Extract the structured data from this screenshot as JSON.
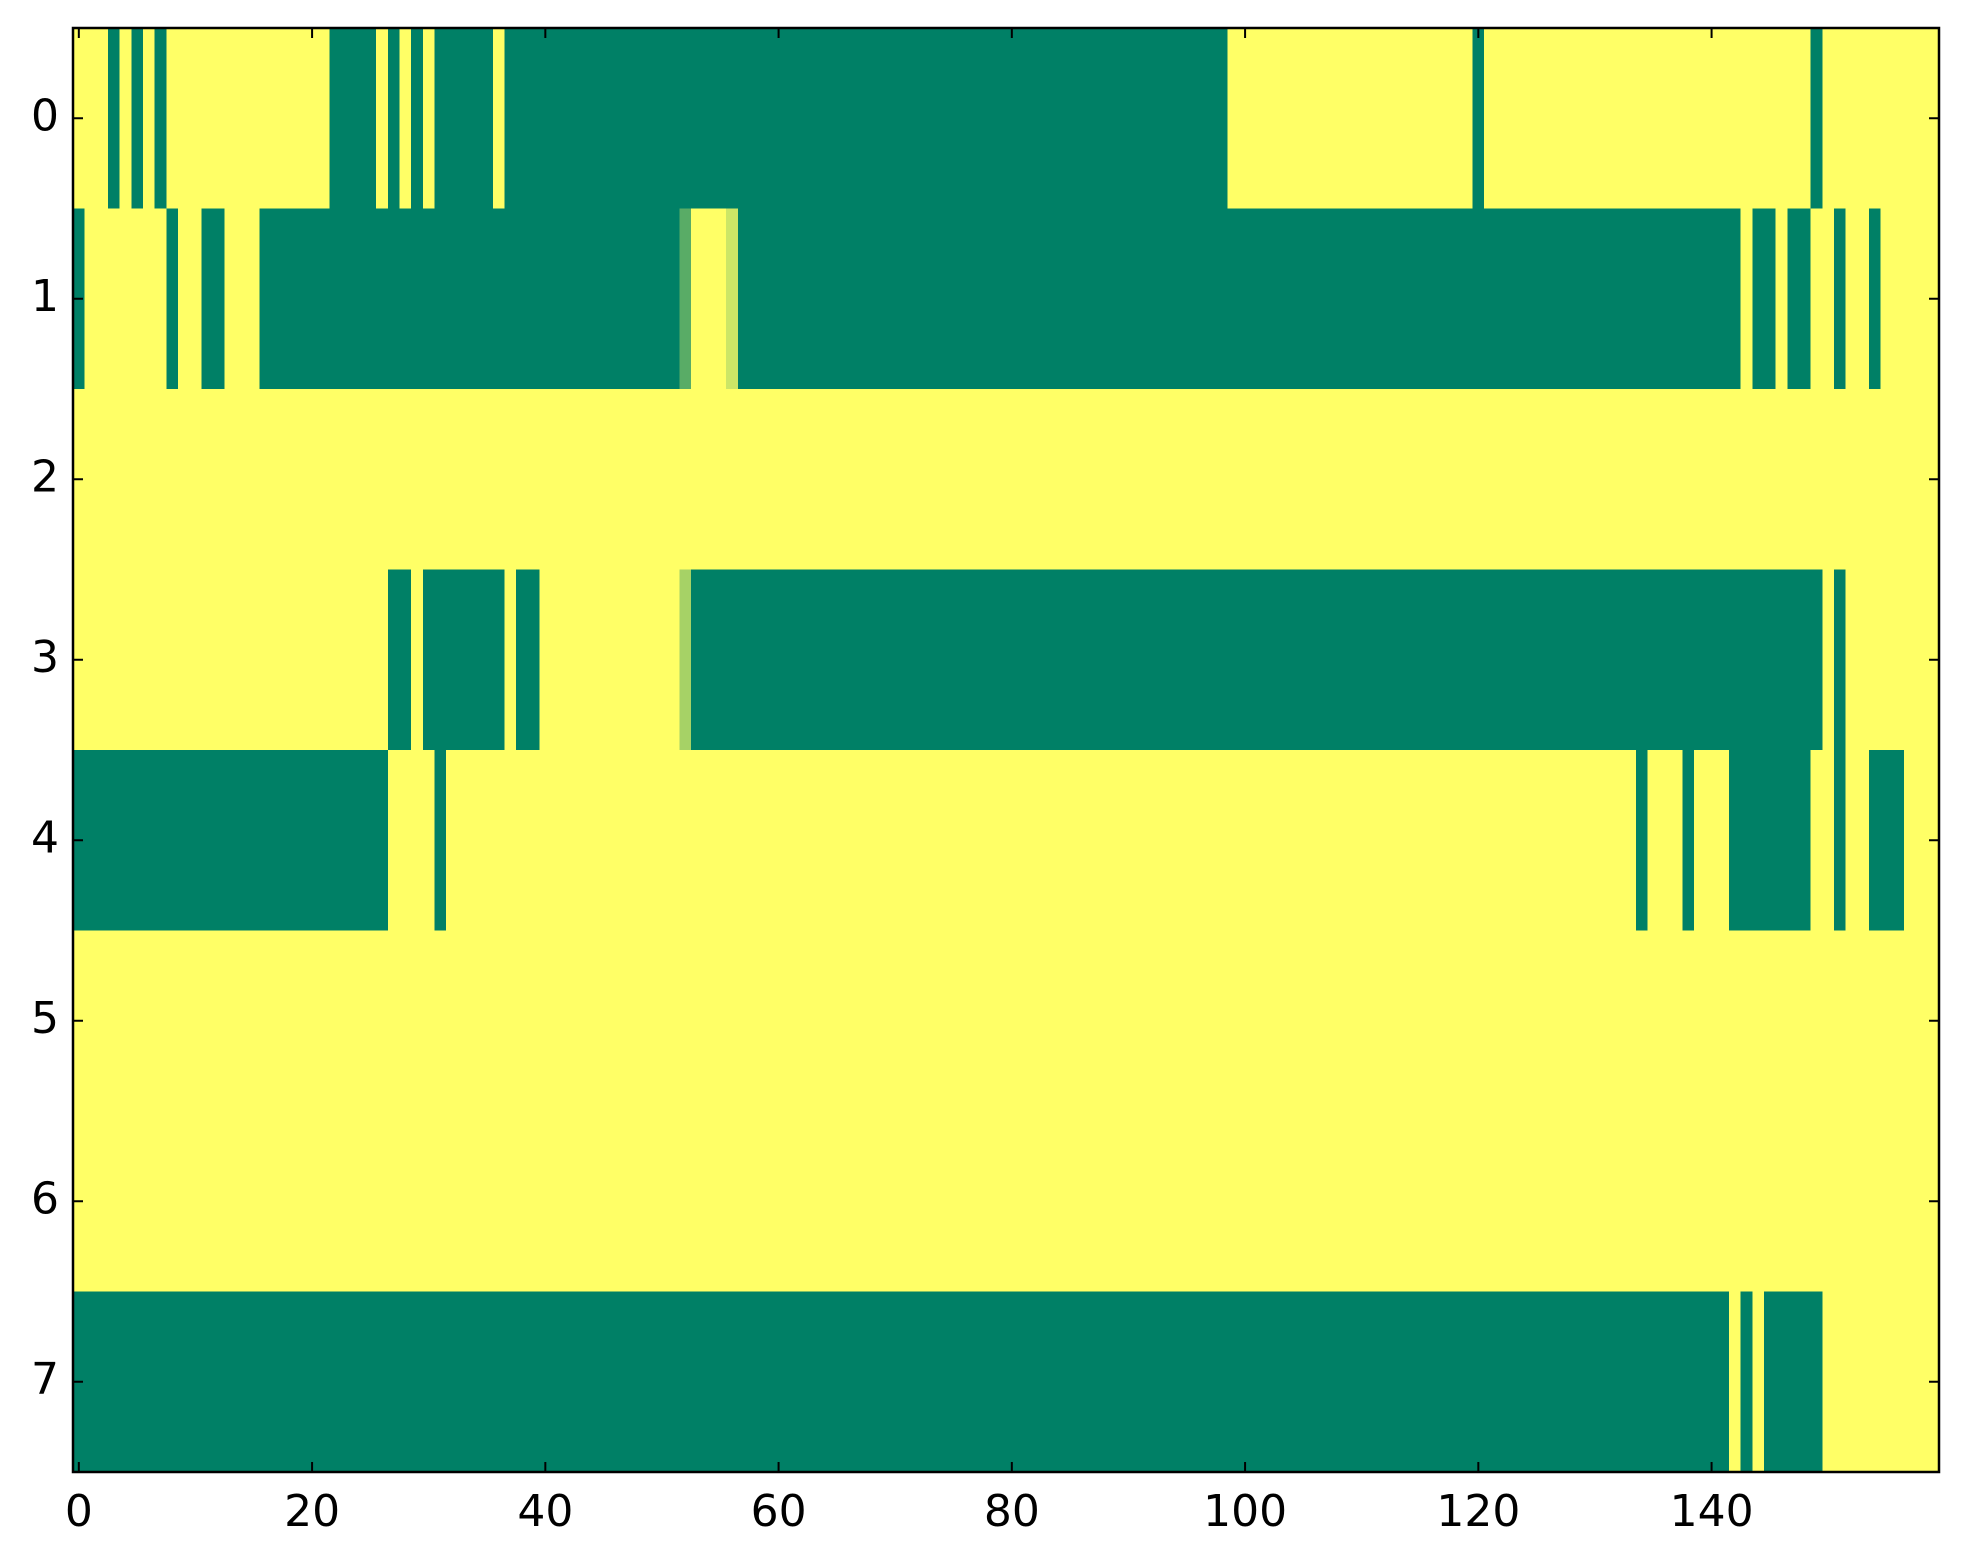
{
  "chart_data": {
    "type": "heatmap",
    "colormap": "summer",
    "clim": [
      0,
      1
    ],
    "xlim": [
      -0.5,
      159.5
    ],
    "ylim": [
      7.5,
      -0.5
    ],
    "xticks": [
      0,
      20,
      40,
      60,
      80,
      100,
      120,
      140
    ],
    "yticks": [
      0,
      1,
      2,
      3,
      4,
      5,
      6,
      7
    ],
    "z": [
      [
        1,
        1,
        1,
        0,
        1,
        0,
        1,
        0,
        1,
        1,
        1,
        1,
        1,
        1,
        1,
        1,
        1,
        1,
        1,
        1,
        1,
        1,
        0,
        0,
        0,
        0,
        1,
        0,
        1,
        0,
        1,
        0,
        0,
        0,
        0,
        0,
        1,
        0,
        0,
        0,
        0,
        0,
        0,
        0,
        0,
        0,
        0,
        0,
        0,
        0,
        0,
        0,
        0,
        0,
        0,
        0,
        0,
        0,
        0,
        0,
        0,
        0,
        0,
        0,
        0,
        0,
        0,
        0,
        0,
        0,
        0,
        0,
        0,
        0,
        0,
        0,
        0,
        0,
        0,
        0,
        0,
        0,
        0,
        0,
        0,
        0,
        0,
        0,
        0,
        0,
        0,
        0,
        0,
        0,
        0,
        0,
        0,
        0,
        0,
        1,
        1,
        1,
        1,
        1,
        1,
        1,
        1,
        1,
        1,
        1,
        1,
        1,
        1,
        1,
        1,
        1,
        1,
        1,
        1,
        1,
        0,
        1,
        1,
        1,
        1,
        1,
        1,
        1,
        1,
        1,
        1,
        1,
        1,
        1,
        1,
        1,
        1,
        1,
        1,
        1,
        1,
        1,
        1,
        1,
        1,
        1,
        1,
        1,
        1,
        0,
        1,
        1,
        1,
        1,
        1,
        1,
        1,
        1,
        1,
        1
      ],
      [
        0,
        1,
        1,
        1,
        1,
        1,
        1,
        1,
        0,
        1,
        1,
        0,
        0,
        1,
        1,
        1,
        0,
        0,
        0,
        0,
        0,
        0,
        0,
        0,
        0,
        0,
        0,
        0,
        0,
        0,
        0,
        0,
        0,
        0,
        0,
        0,
        0,
        0,
        0,
        0,
        0,
        0,
        0,
        0,
        0,
        0,
        0,
        0,
        0,
        0,
        0,
        0,
        0.35,
        1,
        1,
        1,
        0.8,
        0,
        0,
        0,
        0,
        0,
        0,
        0,
        0,
        0,
        0,
        0,
        0,
        0,
        0,
        0,
        0,
        0,
        0,
        0,
        0,
        0,
        0,
        0,
        0,
        0,
        0,
        0,
        0,
        0,
        0,
        0,
        0,
        0,
        0,
        0,
        0,
        0,
        0,
        0,
        0,
        0,
        0,
        0,
        0,
        0,
        0,
        0,
        0,
        0,
        0,
        0,
        0,
        0,
        0,
        0,
        0,
        0,
        0,
        0,
        0,
        0,
        0,
        0,
        0,
        0,
        0,
        0,
        0,
        0,
        0,
        0,
        0,
        0,
        0,
        0,
        0,
        0,
        0,
        0,
        0,
        0,
        0,
        0,
        0,
        0,
        0,
        1,
        0,
        0,
        1,
        0,
        0,
        1,
        1,
        0,
        1,
        1,
        0,
        1,
        1,
        1,
        1,
        1
      ],
      [
        1,
        1,
        1,
        1,
        1,
        1,
        1,
        1,
        1,
        1,
        1,
        1,
        1,
        1,
        1,
        1,
        1,
        1,
        1,
        1,
        1,
        1,
        1,
        1,
        1,
        1,
        1,
        1,
        1,
        1,
        1,
        1,
        1,
        1,
        1,
        1,
        1,
        1,
        1,
        1,
        1,
        1,
        1,
        1,
        1,
        1,
        1,
        1,
        1,
        1,
        1,
        1,
        1,
        1,
        1,
        1,
        1,
        1,
        1,
        1,
        1,
        1,
        1,
        1,
        1,
        1,
        1,
        1,
        1,
        1,
        1,
        1,
        1,
        1,
        1,
        1,
        1,
        1,
        1,
        1,
        1,
        1,
        1,
        1,
        1,
        1,
        1,
        1,
        1,
        1,
        1,
        1,
        1,
        1,
        1,
        1,
        1,
        1,
        1,
        1,
        1,
        1,
        1,
        1,
        1,
        1,
        1,
        1,
        1,
        1,
        1,
        1,
        1,
        1,
        1,
        1,
        1,
        1,
        1,
        1,
        1,
        1,
        1,
        1,
        1,
        1,
        1,
        1,
        1,
        1,
        1,
        1,
        1,
        1,
        1,
        1,
        1,
        1,
        1,
        1,
        1,
        1,
        1,
        1,
        1,
        1,
        1,
        1,
        1,
        1,
        1,
        1,
        1,
        1,
        1,
        1,
        1,
        1,
        1,
        1
      ],
      [
        1,
        1,
        1,
        1,
        1,
        1,
        1,
        1,
        1,
        1,
        1,
        1,
        1,
        1,
        1,
        1,
        1,
        1,
        1,
        1,
        1,
        1,
        1,
        1,
        1,
        1,
        1,
        0,
        0,
        1,
        0,
        0,
        0,
        0,
        0,
        0,
        0,
        1,
        0,
        0,
        1,
        1,
        1,
        1,
        1,
        1,
        1,
        1,
        1,
        1,
        1,
        1,
        0.65,
        0,
        0,
        0,
        0,
        0,
        0,
        0,
        0,
        0,
        0,
        0,
        0,
        0,
        0,
        0,
        0,
        0,
        0,
        0,
        0,
        0,
        0,
        0,
        0,
        0,
        0,
        0,
        0,
        0,
        0,
        0,
        0,
        0,
        0,
        0,
        0,
        0,
        0,
        0,
        0,
        0,
        0,
        0,
        0,
        0,
        0,
        0,
        0,
        0,
        0,
        0,
        0,
        0,
        0,
        0,
        0,
        0,
        0,
        0,
        0,
        0,
        0,
        0,
        0,
        0,
        0,
        0,
        0,
        0,
        0,
        0,
        0,
        0,
        0,
        0,
        0,
        0,
        0,
        0,
        0,
        0,
        0,
        0,
        0,
        0,
        0,
        0,
        0,
        0,
        0,
        0,
        0,
        0,
        0,
        0,
        0,
        0,
        1,
        0,
        1,
        1,
        1,
        1,
        1,
        1,
        1,
        1
      ],
      [
        0,
        0,
        0,
        0,
        0,
        0,
        0,
        0,
        0,
        0,
        0,
        0,
        0,
        0,
        0,
        0,
        0,
        0,
        0,
        0,
        0,
        0,
        0,
        0,
        0,
        0,
        0,
        1,
        1,
        1,
        1,
        0,
        1,
        1,
        1,
        1,
        1,
        1,
        1,
        1,
        1,
        1,
        1,
        1,
        1,
        1,
        1,
        1,
        1,
        1,
        1,
        1,
        1,
        1,
        1,
        1,
        1,
        1,
        1,
        1,
        1,
        1,
        1,
        1,
        1,
        1,
        1,
        1,
        1,
        1,
        1,
        1,
        1,
        1,
        1,
        1,
        1,
        1,
        1,
        1,
        1,
        1,
        1,
        1,
        1,
        1,
        1,
        1,
        1,
        1,
        1,
        1,
        1,
        1,
        1,
        1,
        1,
        1,
        1,
        1,
        1,
        1,
        1,
        1,
        1,
        1,
        1,
        1,
        1,
        1,
        1,
        1,
        1,
        1,
        1,
        1,
        1,
        1,
        1,
        1,
        1,
        1,
        1,
        1,
        1,
        1,
        1,
        1,
        1,
        1,
        1,
        1,
        1,
        1,
        0,
        1,
        1,
        1,
        0,
        1,
        1,
        1,
        0,
        0,
        0,
        0,
        0,
        0,
        0,
        1,
        1,
        0,
        1,
        1,
        0,
        0,
        0,
        1,
        1,
        1
      ],
      [
        1,
        1,
        1,
        1,
        1,
        1,
        1,
        1,
        1,
        1,
        1,
        1,
        1,
        1,
        1,
        1,
        1,
        1,
        1,
        1,
        1,
        1,
        1,
        1,
        1,
        1,
        1,
        1,
        1,
        1,
        1,
        1,
        1,
        1,
        1,
        1,
        1,
        1,
        1,
        1,
        1,
        1,
        1,
        1,
        1,
        1,
        1,
        1,
        1,
        1,
        1,
        1,
        1,
        1,
        1,
        1,
        1,
        1,
        1,
        1,
        1,
        1,
        1,
        1,
        1,
        1,
        1,
        1,
        1,
        1,
        1,
        1,
        1,
        1,
        1,
        1,
        1,
        1,
        1,
        1,
        1,
        1,
        1,
        1,
        1,
        1,
        1,
        1,
        1,
        1,
        1,
        1,
        1,
        1,
        1,
        1,
        1,
        1,
        1,
        1,
        1,
        1,
        1,
        1,
        1,
        1,
        1,
        1,
        1,
        1,
        1,
        1,
        1,
        1,
        1,
        1,
        1,
        1,
        1,
        1,
        1,
        1,
        1,
        1,
        1,
        1,
        1,
        1,
        1,
        1,
        1,
        1,
        1,
        1,
        1,
        1,
        1,
        1,
        1,
        1,
        1,
        1,
        1,
        1,
        1,
        1,
        1,
        1,
        1,
        1,
        1,
        1,
        1,
        1,
        1,
        1,
        1,
        1,
        1,
        1
      ],
      [
        1,
        1,
        1,
        1,
        1,
        1,
        1,
        1,
        1,
        1,
        1,
        1,
        1,
        1,
        1,
        1,
        1,
        1,
        1,
        1,
        1,
        1,
        1,
        1,
        1,
        1,
        1,
        1,
        1,
        1,
        1,
        1,
        1,
        1,
        1,
        1,
        1,
        1,
        1,
        1,
        1,
        1,
        1,
        1,
        1,
        1,
        1,
        1,
        1,
        1,
        1,
        1,
        1,
        1,
        1,
        1,
        1,
        1,
        1,
        1,
        1,
        1,
        1,
        1,
        1,
        1,
        1,
        1,
        1,
        1,
        1,
        1,
        1,
        1,
        1,
        1,
        1,
        1,
        1,
        1,
        1,
        1,
        1,
        1,
        1,
        1,
        1,
        1,
        1,
        1,
        1,
        1,
        1,
        1,
        1,
        1,
        1,
        1,
        1,
        1,
        1,
        1,
        1,
        1,
        1,
        1,
        1,
        1,
        1,
        1,
        1,
        1,
        1,
        1,
        1,
        1,
        1,
        1,
        1,
        1,
        1,
        1,
        1,
        1,
        1,
        1,
        1,
        1,
        1,
        1,
        1,
        1,
        1,
        1,
        1,
        1,
        1,
        1,
        1,
        1,
        1,
        1,
        1,
        1,
        1,
        1,
        1,
        1,
        1,
        1,
        1,
        1,
        1,
        1,
        1,
        1,
        1,
        1,
        1,
        1
      ],
      [
        0,
        0,
        0,
        0,
        0,
        0,
        0,
        0,
        0,
        0,
        0,
        0,
        0,
        0,
        0,
        0,
        0,
        0,
        0,
        0,
        0,
        0,
        0,
        0,
        0,
        0,
        0,
        0,
        0,
        0,
        0,
        0,
        0,
        0,
        0,
        0,
        0,
        0,
        0,
        0,
        0,
        0,
        0,
        0,
        0,
        0,
        0,
        0,
        0,
        0,
        0,
        0,
        0,
        0,
        0,
        0,
        0,
        0,
        0,
        0,
        0,
        0,
        0,
        0,
        0,
        0,
        0,
        0,
        0,
        0,
        0,
        0,
        0,
        0,
        0,
        0,
        0,
        0,
        0,
        0,
        0,
        0,
        0,
        0,
        0,
        0,
        0,
        0,
        0,
        0,
        0,
        0,
        0,
        0,
        0,
        0,
        0,
        0,
        0,
        0,
        0,
        0,
        0,
        0,
        0,
        0,
        0,
        0,
        0,
        0,
        0,
        0,
        0,
        0,
        0,
        0,
        0,
        0,
        0,
        0,
        0,
        0,
        0,
        0,
        0,
        0,
        0,
        0,
        0,
        0,
        0,
        0,
        0,
        0,
        0,
        0,
        0,
        0,
        0,
        0,
        0,
        0,
        1,
        0,
        1,
        0,
        0,
        0,
        0,
        0,
        1,
        1,
        1,
        1,
        1,
        1,
        1,
        1,
        1,
        1
      ]
    ]
  }
}
